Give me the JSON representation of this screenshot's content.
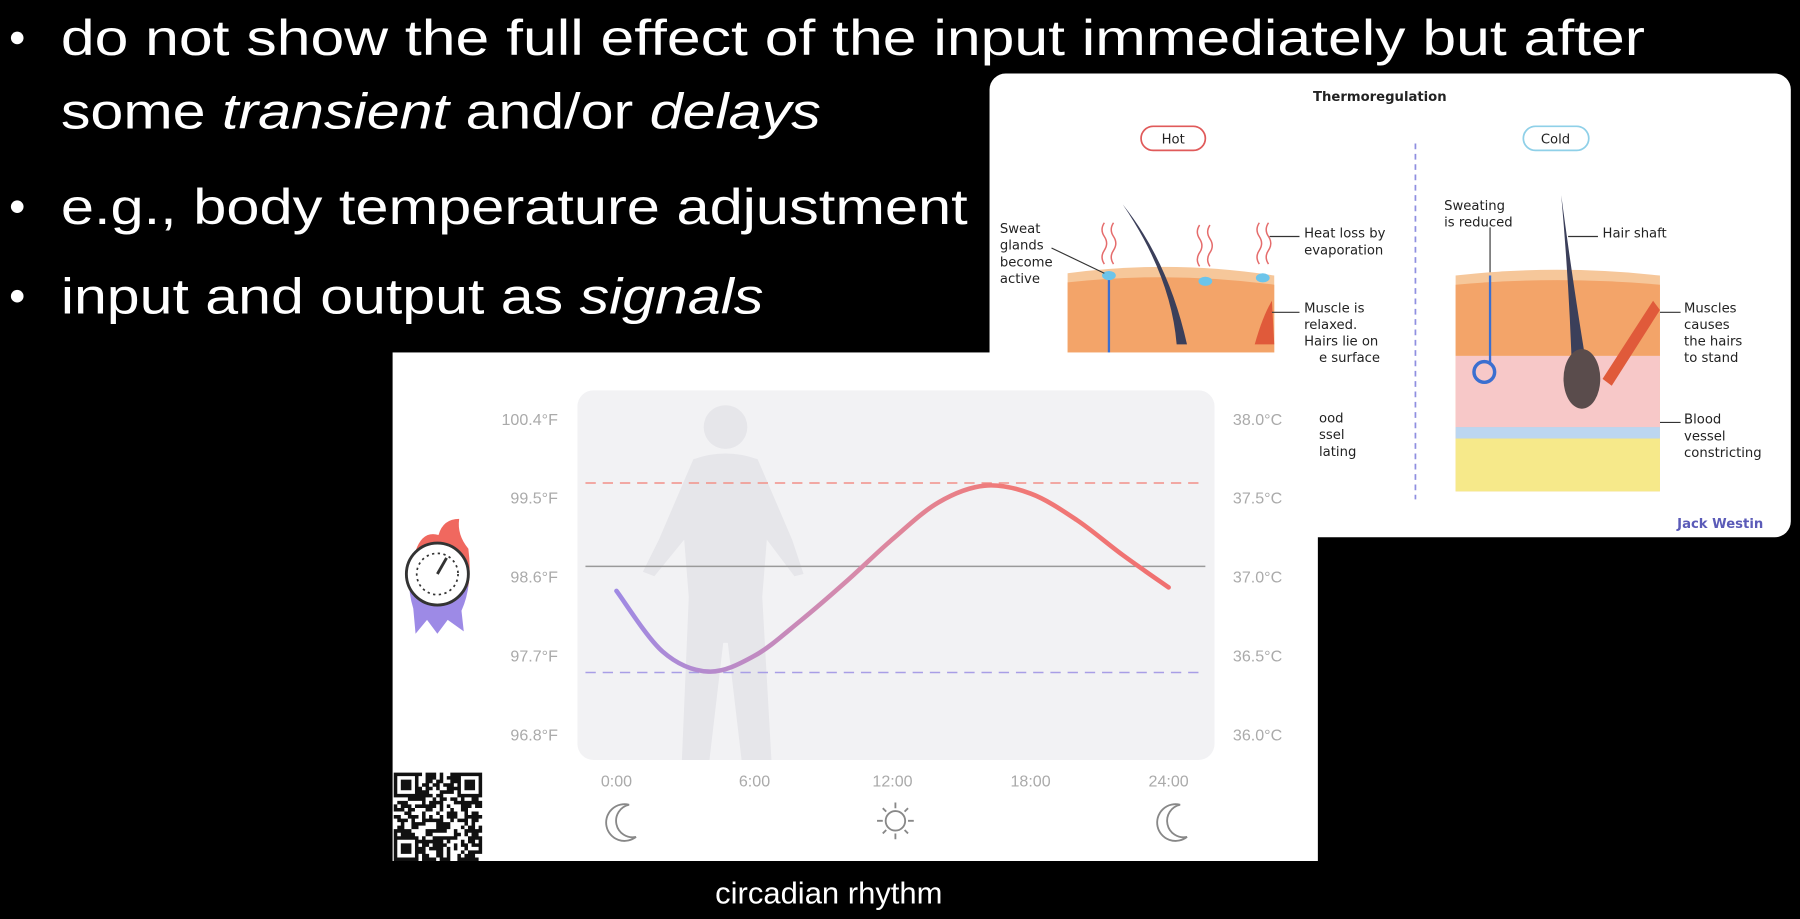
{
  "bullets": [
    {
      "lines": [
        [
          {
            "text": "do not show the full effect of the input immediately but after"
          }
        ],
        [
          {
            "text": "some "
          },
          {
            "text": "transient",
            "italic": true
          },
          {
            "text": " and/or "
          },
          {
            "text": "delays",
            "italic": true
          }
        ]
      ]
    },
    {
      "lines": [
        [
          {
            "text": "e.g., body temperature adjustment"
          }
        ]
      ]
    },
    {
      "lines": [
        [
          {
            "text": "input and output as "
          },
          {
            "text": "signals",
            "italic": true
          }
        ]
      ]
    }
  ],
  "thermoregulation": {
    "title": "Thermoregulation",
    "hot": "Hot",
    "cold": "Cold",
    "labels": {
      "sweat_glands": [
        "Sweat",
        "glands",
        "become",
        "active"
      ],
      "heat_loss": [
        "Heat loss by",
        "evaporation"
      ],
      "muscle_relaxed": [
        "Muscle is",
        "relaxed.",
        "Hairs lie on",
        "e surface"
      ],
      "blood_dilating": [
        "ood",
        "ssel",
        "lating"
      ],
      "sweating_reduced": [
        "Sweating",
        "is reduced"
      ],
      "hair_shaft": [
        "Hair shaft"
      ],
      "muscles_stand": [
        "Muscles",
        "causes",
        "the hairs",
        "to stand"
      ],
      "blood_constricting": [
        "Blood",
        "vessel",
        "constricting"
      ]
    },
    "credit": "Jack Westin"
  },
  "circadian_chart": {
    "type": "line",
    "xlim": [
      0,
      24
    ],
    "xticks": [
      {
        "value": 0,
        "label": "0:00"
      },
      {
        "value": 6,
        "label": "6:00"
      },
      {
        "value": 12,
        "label": "12:00"
      },
      {
        "value": 18,
        "label": "18:00"
      },
      {
        "value": 24,
        "label": "24:00"
      }
    ],
    "ylim": [
      96.8,
      100.4
    ],
    "yticks": [
      {
        "value": 100.4,
        "label": "100.4°F"
      },
      {
        "value": 99.5,
        "label": "99.5°F"
      },
      {
        "value": 98.6,
        "label": "98.6°F"
      },
      {
        "value": 97.7,
        "label": "97.7°F"
      },
      {
        "value": 96.8,
        "label": "96.8°F"
      }
    ],
    "y2lim": [
      36.0,
      38.0
    ],
    "y2ticks": [
      {
        "value": 38.0,
        "label": "38.0°C"
      },
      {
        "value": 37.5,
        "label": "37.5°C"
      },
      {
        "value": 37.0,
        "label": "37.0°C"
      },
      {
        "value": 36.5,
        "label": "36.5°C"
      },
      {
        "value": 36.0,
        "label": "36.0°C"
      }
    ],
    "reference_lines": [
      {
        "value": 99.67,
        "color": "#f29088",
        "dashed": true
      },
      {
        "value": 98.72,
        "color": "#9a9a9a",
        "dashed": false
      },
      {
        "value": 97.51,
        "color": "#a89ee6",
        "dashed": true
      }
    ],
    "series": [
      {
        "x": [
          0,
          2,
          4,
          6,
          8,
          10,
          12,
          14,
          16,
          18,
          20,
          22,
          24
        ],
        "values": [
          98.44,
          97.75,
          97.52,
          97.7,
          98.1,
          98.55,
          99.03,
          99.45,
          99.64,
          99.55,
          99.25,
          98.85,
          98.48
        ]
      }
    ]
  },
  "caption": "circadian rhythm"
}
